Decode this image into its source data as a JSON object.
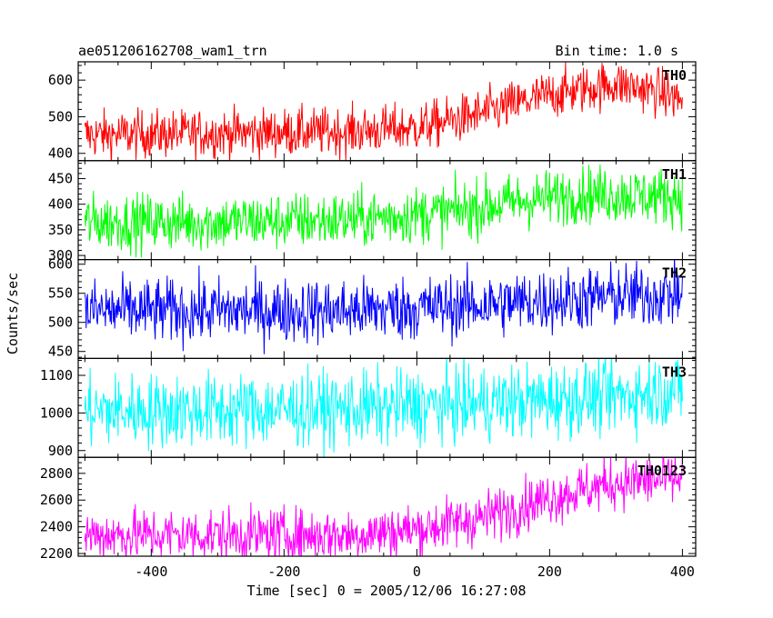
{
  "chart_data": {
    "type": "line",
    "title": "ae051206162708_wam1_trn",
    "bin_time": "Bin time: 1.0 s",
    "xlabel": "Time [sec] 0 = 2005/12/06 16:27:08",
    "ylabel": "Counts/sec",
    "xlim": [
      -510,
      420
    ],
    "xticks": [
      -400,
      -200,
      0,
      200,
      400
    ],
    "x_range_data": [
      -500,
      400
    ],
    "grid": false,
    "panels": [
      {
        "name": "TH0",
        "color": "#ff0000",
        "ylim": [
          380,
          650
        ],
        "yticks": [
          400,
          500,
          600
        ],
        "trend": [
          [
            -500,
            450
          ],
          [
            -100,
            460
          ],
          [
            0,
            470
          ],
          [
            80,
            500
          ],
          [
            200,
            560
          ],
          [
            300,
            590
          ],
          [
            360,
            570
          ],
          [
            400,
            545
          ]
        ],
        "noise": 33
      },
      {
        "name": "TH1",
        "color": "#00ff00",
        "ylim": [
          292,
          485
        ],
        "yticks": [
          300,
          350,
          400,
          450
        ],
        "trend": [
          [
            -500,
            365
          ],
          [
            -300,
            365
          ],
          [
            -100,
            370
          ],
          [
            50,
            385
          ],
          [
            150,
            405
          ],
          [
            250,
            420
          ],
          [
            400,
            415
          ]
        ],
        "noise": 28
      },
      {
        "name": "TH2",
        "color": "#0000ff",
        "ylim": [
          438,
          608
        ],
        "yticks": [
          450,
          500,
          550,
          600
        ],
        "trend": [
          [
            -500,
            520
          ],
          [
            -100,
            520
          ],
          [
            100,
            530
          ],
          [
            300,
            545
          ],
          [
            400,
            548
          ]
        ],
        "noise": 28
      },
      {
        "name": "TH3",
        "color": "#00ffff",
        "ylim": [
          882,
          1145
        ],
        "yticks": [
          900,
          1000,
          1100
        ],
        "trend": [
          [
            -500,
            1005
          ],
          [
            -100,
            1010
          ],
          [
            100,
            1025
          ],
          [
            300,
            1045
          ],
          [
            400,
            1065
          ]
        ],
        "noise": 50
      },
      {
        "name": "TH0123",
        "color": "#ff00ff",
        "ylim": [
          2180,
          2920
        ],
        "yticks": [
          2200,
          2400,
          2600,
          2800
        ],
        "trend": [
          [
            -500,
            2340
          ],
          [
            -100,
            2340
          ],
          [
            0,
            2380
          ],
          [
            100,
            2470
          ],
          [
            200,
            2620
          ],
          [
            300,
            2730
          ],
          [
            400,
            2760
          ]
        ],
        "noise": 100
      }
    ]
  }
}
